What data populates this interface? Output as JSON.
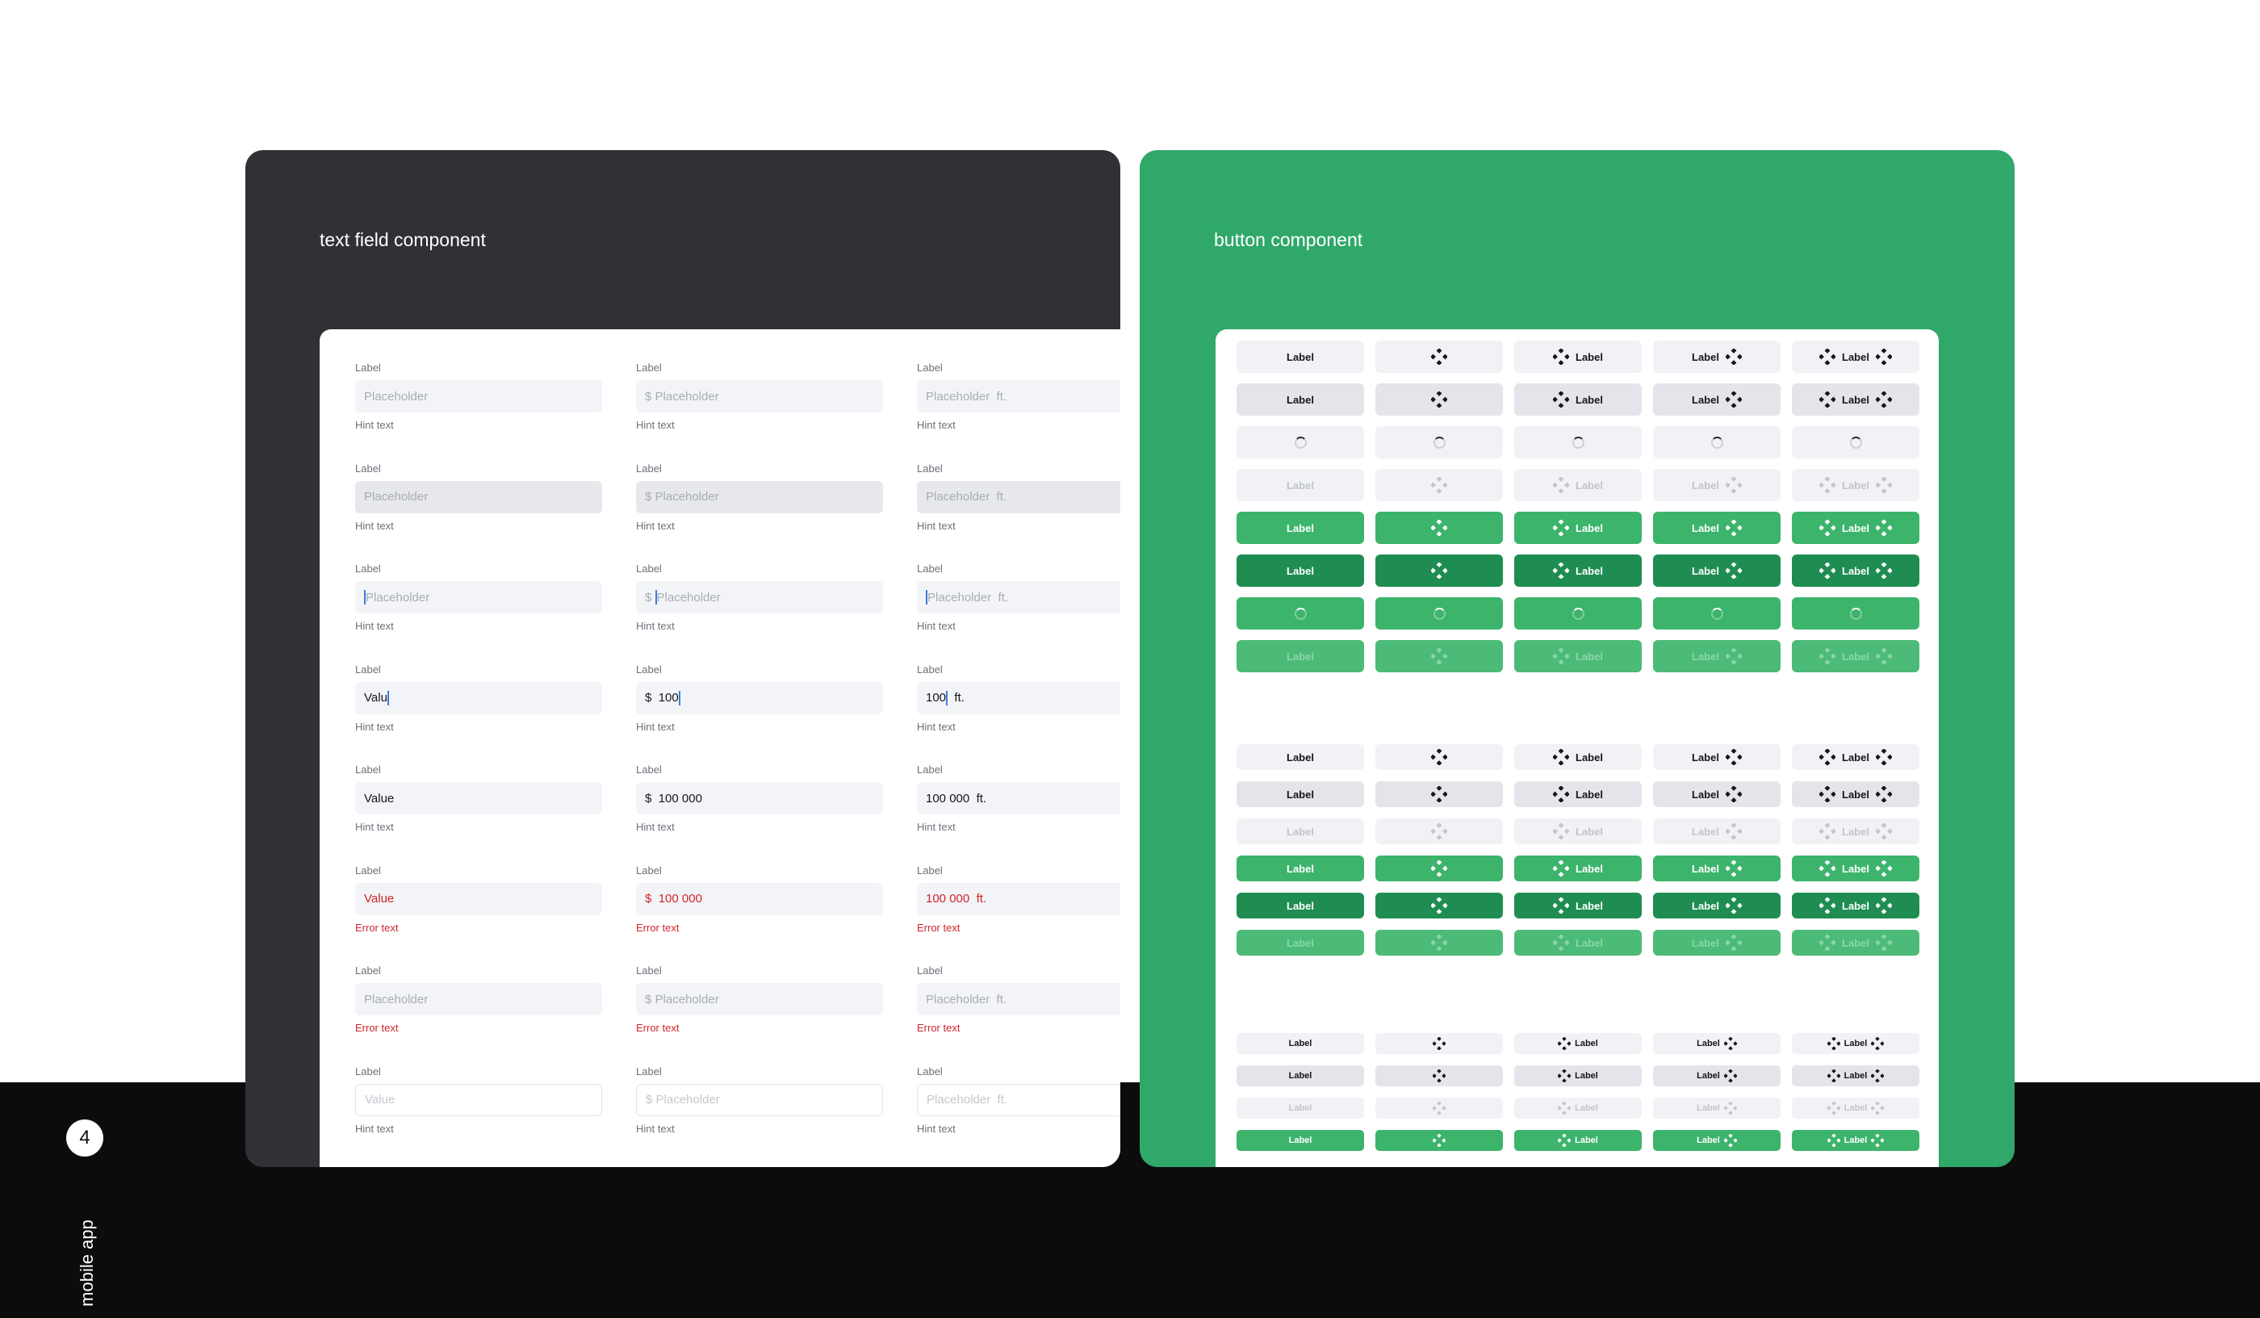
{
  "page": {
    "number": "4",
    "section_label": "mobile app"
  },
  "text_field_card": {
    "title": "text field component",
    "label": "Label",
    "hint": "Hint text",
    "error": "Error text",
    "rows": [
      {
        "state": "default",
        "hint_type": "hint",
        "fields": [
          {
            "prefix": "",
            "value": "Placeholder",
            "suffix": ""
          },
          {
            "prefix": "$ ",
            "value": "Placeholder",
            "suffix": ""
          },
          {
            "prefix": "",
            "value": "Placeholder",
            "suffix": "  ft."
          }
        ]
      },
      {
        "state": "hover",
        "hint_type": "hint",
        "fields": [
          {
            "prefix": "",
            "value": "Placeholder",
            "suffix": ""
          },
          {
            "prefix": "$ ",
            "value": "Placeholder",
            "suffix": ""
          },
          {
            "prefix": "",
            "value": "Placeholder",
            "suffix": "  ft."
          }
        ]
      },
      {
        "state": "focus",
        "hint_type": "hint",
        "fields": [
          {
            "prefix": "",
            "value": "Placeholder",
            "suffix": "",
            "cursor": "before"
          },
          {
            "prefix": "$ ",
            "value": "Placeholder",
            "suffix": "",
            "cursor": "before"
          },
          {
            "prefix": "",
            "value": "Placeholder",
            "suffix": "  ft.",
            "cursor": "before"
          }
        ]
      },
      {
        "state": "typing",
        "hint_type": "hint",
        "fields": [
          {
            "prefix": "",
            "value": "Valu",
            "suffix": "",
            "cursor": "after"
          },
          {
            "prefix": "$  ",
            "value": "100",
            "suffix": "",
            "cursor": "after"
          },
          {
            "prefix": "",
            "value": "100",
            "suffix": "  ft.",
            "cursor": "after"
          }
        ]
      },
      {
        "state": "filled",
        "hint_type": "hint",
        "fields": [
          {
            "prefix": "",
            "value": "Value",
            "suffix": ""
          },
          {
            "prefix": "$  ",
            "value": "100 000",
            "suffix": ""
          },
          {
            "prefix": "",
            "value": "100 000",
            "suffix": "  ft."
          }
        ]
      },
      {
        "state": "error",
        "hint_type": "error",
        "fields": [
          {
            "prefix": "",
            "value": "Value",
            "suffix": ""
          },
          {
            "prefix": "$  ",
            "value": "100 000",
            "suffix": ""
          },
          {
            "prefix": "",
            "value": "100 000",
            "suffix": "  ft."
          }
        ]
      },
      {
        "state": "err2",
        "hint_type": "error",
        "fields": [
          {
            "prefix": "",
            "value": "Placeholder",
            "suffix": ""
          },
          {
            "prefix": "$ ",
            "value": "Placeholder",
            "suffix": ""
          },
          {
            "prefix": "",
            "value": "Placeholder",
            "suffix": "  ft."
          }
        ]
      },
      {
        "state": "disabled",
        "hint_type": "hint",
        "fields": [
          {
            "prefix": "",
            "value": "Value",
            "suffix": ""
          },
          {
            "prefix": "$ ",
            "value": "Placeholder",
            "suffix": ""
          },
          {
            "prefix": "",
            "value": "Placeholder",
            "suffix": "  ft."
          }
        ]
      }
    ]
  },
  "button_card": {
    "title": "button component",
    "label": "Label",
    "icon": "component-diamond-icon",
    "colors": {
      "gray_default": "#f1f2f5",
      "gray_hover": "#e4e5ea",
      "gray_text": "#16171b",
      "gray_disabled_text": "#c3c5cc",
      "green_default": "#3cb46c",
      "green_pressed": "#1f8d52",
      "green_text": "#ffffff",
      "green_disabled_bg": "#4cbb78",
      "green_disabled_text": "#8ad6a8"
    },
    "variants": [
      "label",
      "icon",
      "icon-label",
      "label-icon",
      "icon-label-icon"
    ],
    "groups": [
      {
        "size": "lg",
        "rows": [
          "gray-default",
          "gray-hover",
          "gray-loading",
          "gray-disabled",
          "green-default",
          "green-pressed",
          "green-loading",
          "green-disabled"
        ]
      },
      {
        "size": "md",
        "rows": [
          "gray-default",
          "gray-hover",
          "gray-disabled",
          "green-default",
          "green-pressed",
          "green-disabled"
        ]
      },
      {
        "size": "sm",
        "rows": [
          "gray-default",
          "gray-hover",
          "gray-disabled",
          "green-default"
        ]
      }
    ]
  }
}
